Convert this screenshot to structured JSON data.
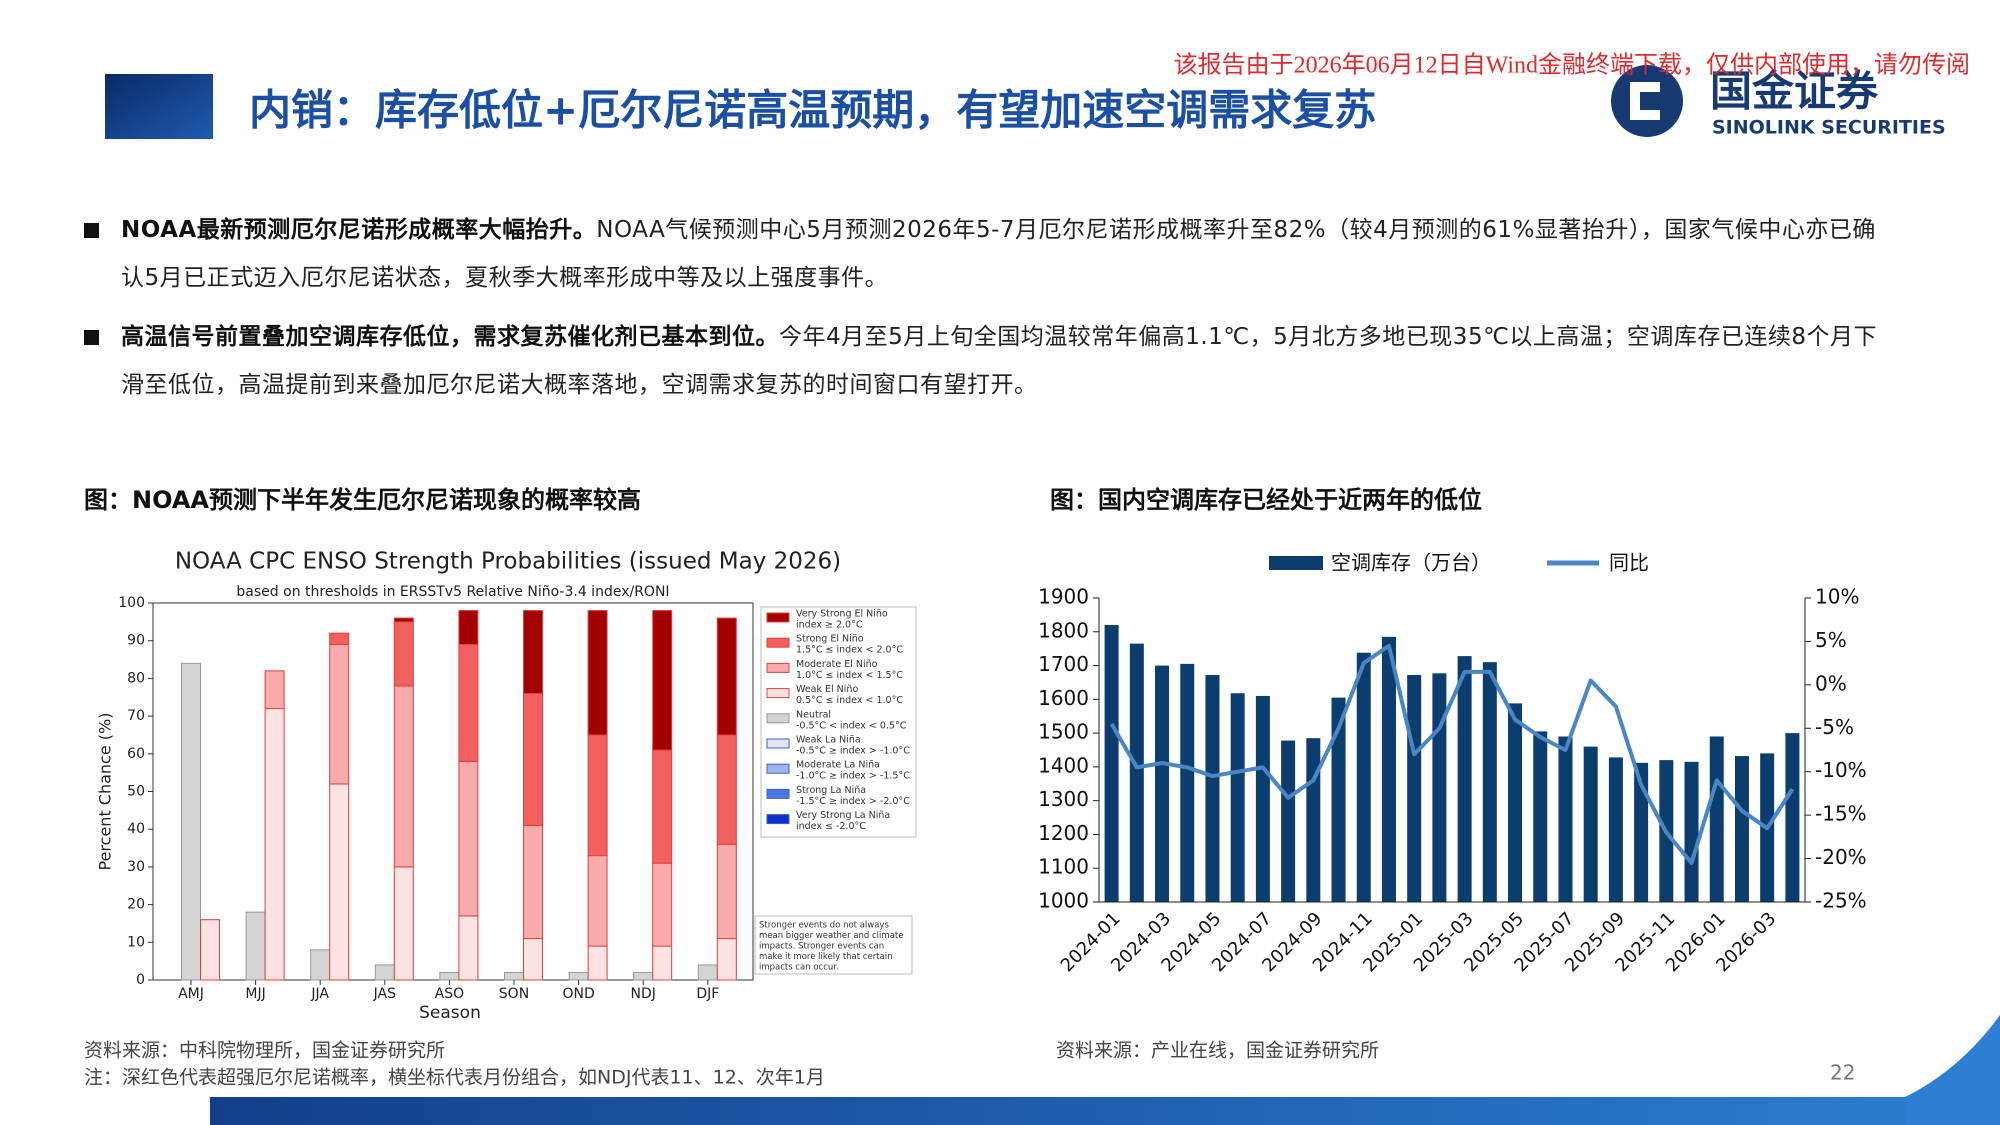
{
  "header": {
    "title": "内销：库存低位+厄尔尼诺高温预期，有望加速空调需求复苏",
    "watermark": "该报告由于2026年06月12日自Wind金融终端下载，仅供内部使用，请勿传阅",
    "logo_cn": "国金证券",
    "logo_en": "SINOLINK SECURITIES"
  },
  "bullets": [
    {
      "lead": "NOAA最新预测厄尔尼诺形成概率大幅抬升。",
      "text": "NOAA气候预测中心5月预测2026年5-7月厄尔尼诺形成概率升至82%（较4月预测的61%显著抬升），国家气候中心亦已确认5月已正式迈入厄尔尼诺状态，夏秋季大概率形成中等及以上强度事件。"
    },
    {
      "lead": "高温信号前置叠加空调库存低位，需求复苏催化剂已基本到位。",
      "text": "今年4月至5月上旬全国均温较常年偏高1.1℃，5月北方多地已现35℃以上高温；空调库存已连续8个月下滑至低位，高温提前到来叠加厄尔尼诺大概率落地，空调需求复苏的时间窗口有望打开。"
    }
  ],
  "figures": [
    {
      "caption": "图：NOAA预测下半年发生厄尔尼诺现象的概率较高",
      "source": "资料来源：中科院物理所，国金证券研究所",
      "note": "注：深红色代表超强厄尔尼诺概率，横坐标代表月份组合，如NDJ代表11、12、次年1月"
    },
    {
      "caption": "图：国内空调库存已经处于近两年的低位",
      "source": "资料来源：产业在线，国金证券研究所"
    }
  ],
  "page_number": 22,
  "chart_data": [
    {
      "type": "bar",
      "stacked": true,
      "title": "NOAA CPC ENSO Strength Probabilities (issued May 2026)",
      "subtitle": "based on thresholds in ERSSTv5 Relative Niño-3.4 index/RONI",
      "x_label": "Season",
      "y_label": "Percent Chance (%)",
      "categories": [
        "AMJ",
        "MJJ",
        "JJA",
        "JAS",
        "ASO",
        "SON",
        "OND",
        "NDJ",
        "DJF"
      ],
      "ylim": [
        0,
        100
      ],
      "yticks": [
        0,
        10,
        20,
        30,
        40,
        50,
        60,
        70,
        80,
        90,
        100
      ],
      "series": [
        {
          "name": "Very Strong El Niño",
          "note": "index ≥ 2.0°C",
          "color": "#a30000",
          "values": [
            0,
            0,
            0,
            1,
            9,
            22,
            33,
            37,
            31
          ]
        },
        {
          "name": "Strong El Niño",
          "note": "1.5°C ≤ index < 2.0°C",
          "color": "#f26060",
          "values": [
            0,
            0,
            3,
            17,
            31,
            35,
            32,
            30,
            29
          ]
        },
        {
          "name": "Moderate El Niño",
          "note": "1.0°C ≤ index < 1.5°C",
          "color": "#f8abab",
          "values": [
            0,
            10,
            37,
            48,
            41,
            30,
            24,
            22,
            25
          ]
        },
        {
          "name": "Weak El Niño",
          "note": "0.5°C ≤ index < 1.0°C",
          "color": "#fde3e3",
          "values": [
            16,
            72,
            52,
            30,
            17,
            11,
            9,
            9,
            11
          ]
        },
        {
          "name": "Neutral",
          "note": "-0.5°C < index < 0.5°C",
          "color": "#d4d4d4",
          "values": [
            84,
            18,
            8,
            4,
            2,
            2,
            2,
            2,
            4
          ]
        },
        {
          "name": "Weak La Niña",
          "note": "-0.5°C ≥ index > -1.0°C",
          "color": "#dfe7f8",
          "values": [
            0,
            0,
            0,
            0,
            0,
            0,
            0,
            0,
            0
          ]
        },
        {
          "name": "Moderate La Niña",
          "note": "-1.0°C ≥ index > -1.5°C",
          "color": "#9db6ee",
          "values": [
            0,
            0,
            0,
            0,
            0,
            0,
            0,
            0,
            0
          ]
        },
        {
          "name": "Strong La Niña",
          "note": "-1.5°C ≥ index > -2.0°C",
          "color": "#4a78e0",
          "values": [
            0,
            0,
            0,
            0,
            0,
            0,
            0,
            0,
            0
          ]
        },
        {
          "name": "Very Strong La Niña",
          "note": "index ≤ -2.0°C",
          "color": "#0c2fcc",
          "values": [
            0,
            0,
            0,
            0,
            0,
            0,
            0,
            0,
            0
          ]
        }
      ],
      "annotation": [
        "Stronger events do not always",
        "mean bigger weather and climate",
        "impacts. Stronger events can",
        "make it more likely that certain",
        "impacts can occur."
      ]
    },
    {
      "type": "combo",
      "categories": [
        "2024-01",
        null,
        "2024-03",
        null,
        "2024-05",
        null,
        "2024-07",
        null,
        "2024-09",
        null,
        "2024-11",
        null,
        "2025-01",
        null,
        "2025-03",
        null,
        "2025-05",
        null,
        "2025-07",
        null,
        "2025-09",
        null,
        "2025-11",
        null,
        "2026-01",
        null,
        "2026-03",
        null
      ],
      "ylim": [
        1000,
        1900
      ],
      "yticks": [
        1000,
        1100,
        1200,
        1300,
        1400,
        1500,
        1600,
        1700,
        1800,
        1900
      ],
      "y2lim": [
        -25,
        10
      ],
      "y2ticks": [
        {
          "value": -25,
          "label": "-25%"
        },
        {
          "value": -20,
          "label": "-20%"
        },
        {
          "value": -15,
          "label": "-15%"
        },
        {
          "value": -10,
          "label": "-10%"
        },
        {
          "value": -5,
          "label": "-5%"
        },
        {
          "value": 0,
          "label": "0%"
        },
        {
          "value": 5,
          "label": "5%"
        },
        {
          "value": 10,
          "label": "10%"
        }
      ],
      "series": [
        {
          "name": "空调库存（万台）",
          "type": "bar",
          "color": "#0b3e6e",
          "values": [
            1820,
            1765,
            1700,
            1705,
            1672,
            1618,
            1610,
            1478,
            1485,
            1605,
            1738,
            1785,
            1672,
            1677,
            1728,
            1710,
            1588,
            1505,
            1490,
            1460,
            1428,
            1412,
            1420,
            1415,
            1490,
            1432,
            1440,
            1500
          ]
        },
        {
          "name": "同比",
          "type": "line",
          "axis": "y2",
          "color": "#4a86c5",
          "values": [
            -4.5,
            -9.5,
            -9,
            -9.5,
            -10.5,
            -10,
            -9.5,
            -13,
            -11,
            -5,
            2.5,
            4.5,
            -8,
            -5,
            1.5,
            1.5,
            -4,
            -6,
            -7.5,
            0.5,
            -2.5,
            -11.5,
            -17,
            -20.5,
            -11,
            -14.5,
            -16.5,
            -12
          ]
        }
      ]
    }
  ]
}
